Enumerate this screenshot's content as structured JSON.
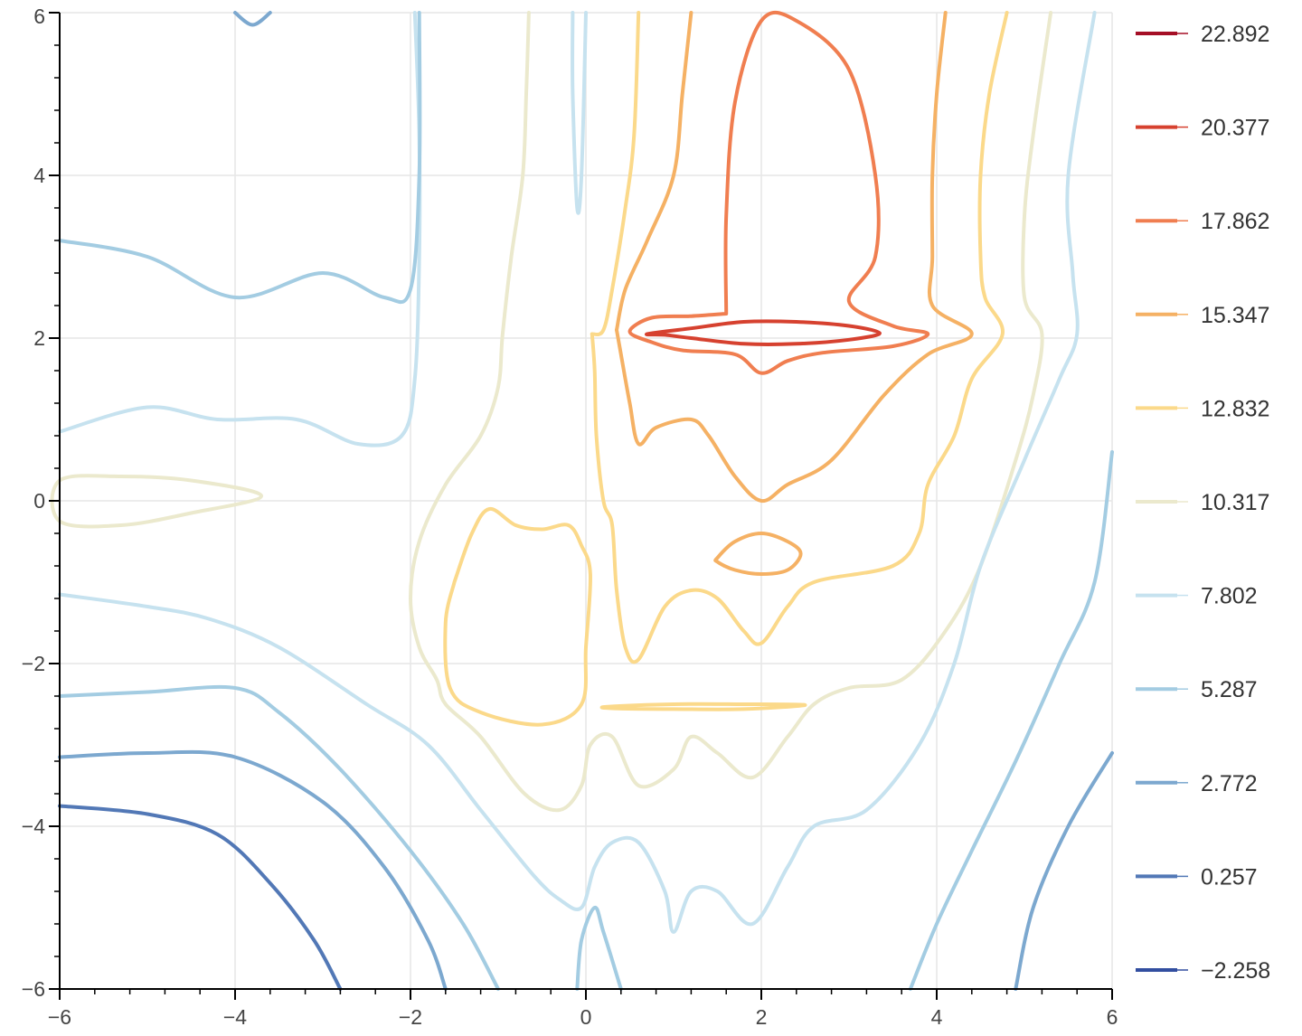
{
  "chart_data": {
    "type": "contour",
    "title": "",
    "xlabel": "",
    "ylabel": "",
    "xlim": [
      -6,
      6
    ],
    "ylim": [
      -6,
      6
    ],
    "x_ticks": [
      -6,
      -4,
      -2,
      0,
      2,
      4,
      6
    ],
    "y_ticks": [
      -6,
      -4,
      -2,
      0,
      2,
      4,
      6
    ],
    "x_tick_labels": [
      "−6",
      "−4",
      "−2",
      "0",
      "2",
      "4",
      "6"
    ],
    "y_tick_labels": [
      "−6",
      "−4",
      "−2",
      "0",
      "2",
      "4",
      "6"
    ],
    "grid": true,
    "legend_position": "right",
    "levels": [
      {
        "value": 22.892,
        "label": "22.892",
        "color": "#a50f26"
      },
      {
        "value": 20.377,
        "label": "20.377",
        "color": "#d6412f"
      },
      {
        "value": 17.862,
        "label": "17.862",
        "color": "#f07e50"
      },
      {
        "value": 15.347,
        "label": "15.347",
        "color": "#f5b164"
      },
      {
        "value": 12.832,
        "label": "12.832",
        "color": "#fbd98a"
      },
      {
        "value": 10.317,
        "label": "10.317",
        "color": "#ebe9cd"
      },
      {
        "value": 7.802,
        "label": "7.802",
        "color": "#c6e2ef"
      },
      {
        "value": 5.287,
        "label": "5.287",
        "color": "#a3cce2"
      },
      {
        "value": 2.772,
        "label": "2.772",
        "color": "#7ca8cf"
      },
      {
        "value": 0.257,
        "label": "0.257",
        "color": "#5278b6"
      },
      {
        "value": -2.258,
        "label": "−2.258",
        "color": "#324ea0"
      }
    ],
    "contours": [
      {
        "level": "20.377",
        "closed": true,
        "points": [
          [
            0.7,
            2.05
          ],
          [
            1.2,
            2.12
          ],
          [
            1.8,
            2.2
          ],
          [
            2.4,
            2.2
          ],
          [
            3.0,
            2.15
          ],
          [
            3.35,
            2.06
          ],
          [
            3.0,
            1.98
          ],
          [
            2.4,
            1.93
          ],
          [
            1.8,
            1.93
          ],
          [
            1.2,
            2.0
          ],
          [
            0.9,
            2.04
          ]
        ]
      },
      {
        "level": "17.862",
        "closed": false,
        "points": [
          [
            1.6,
            2.3
          ],
          [
            1.6,
            3.5
          ],
          [
            1.7,
            4.9
          ],
          [
            2.0,
            5.9
          ],
          [
            2.4,
            5.9
          ],
          [
            3.0,
            5.3
          ],
          [
            3.3,
            4.0
          ],
          [
            3.3,
            3.0
          ],
          [
            3.0,
            2.45
          ],
          [
            3.5,
            2.15
          ],
          [
            3.9,
            2.05
          ],
          [
            3.5,
            1.9
          ],
          [
            2.7,
            1.82
          ],
          [
            2.3,
            1.72
          ],
          [
            2.0,
            1.57
          ],
          [
            1.7,
            1.8
          ],
          [
            1.1,
            1.85
          ],
          [
            0.75,
            1.95
          ],
          [
            0.5,
            2.08
          ],
          [
            0.75,
            2.25
          ],
          [
            1.2,
            2.27
          ],
          [
            1.6,
            2.3
          ]
        ]
      },
      {
        "level": "15.347",
        "closed": false,
        "points": [
          [
            0.35,
            2.1
          ],
          [
            0.45,
            2.6
          ],
          [
            0.7,
            3.2
          ],
          [
            1.0,
            4.0
          ],
          [
            1.1,
            5.0
          ],
          [
            1.2,
            6.0
          ]
        ]
      },
      {
        "level": "15.347",
        "closed": false,
        "points": [
          [
            4.1,
            6.0
          ],
          [
            4.0,
            5.0
          ],
          [
            3.95,
            4.0
          ],
          [
            3.95,
            3.0
          ],
          [
            3.95,
            2.4
          ],
          [
            4.4,
            2.05
          ],
          [
            3.9,
            1.8
          ],
          [
            3.4,
            1.3
          ],
          [
            2.8,
            0.5
          ],
          [
            2.3,
            0.2
          ],
          [
            2.0,
            0.0
          ],
          [
            1.7,
            0.3
          ],
          [
            1.4,
            0.8
          ],
          [
            1.2,
            1.0
          ],
          [
            0.8,
            0.9
          ],
          [
            0.6,
            0.7
          ],
          [
            0.5,
            1.2
          ],
          [
            0.4,
            1.8
          ],
          [
            0.35,
            2.1
          ]
        ]
      },
      {
        "level": "15.347",
        "closed": true,
        "points": [
          [
            1.5,
            -0.7
          ],
          [
            1.7,
            -0.5
          ],
          [
            2.0,
            -0.4
          ],
          [
            2.3,
            -0.5
          ],
          [
            2.45,
            -0.65
          ],
          [
            2.3,
            -0.85
          ],
          [
            2.0,
            -0.9
          ],
          [
            1.7,
            -0.85
          ],
          [
            1.5,
            -0.75
          ]
        ]
      },
      {
        "level": "12.832",
        "closed": false,
        "points": [
          [
            0.07,
            2.05
          ],
          [
            0.2,
            2.1
          ],
          [
            0.3,
            2.6
          ],
          [
            0.45,
            3.6
          ],
          [
            0.55,
            4.5
          ],
          [
            0.6,
            6.0
          ]
        ]
      },
      {
        "level": "12.832",
        "closed": false,
        "points": [
          [
            4.8,
            6.0
          ],
          [
            4.6,
            5.0
          ],
          [
            4.5,
            4.0
          ],
          [
            4.5,
            3.0
          ],
          [
            4.55,
            2.5
          ],
          [
            4.75,
            2.05
          ],
          [
            4.4,
            1.5
          ],
          [
            4.2,
            0.8
          ],
          [
            3.9,
            0.2
          ],
          [
            3.8,
            -0.4
          ],
          [
            3.5,
            -0.8
          ],
          [
            2.6,
            -1.0
          ],
          [
            2.3,
            -1.3
          ],
          [
            2.0,
            -1.75
          ],
          [
            1.8,
            -1.6
          ],
          [
            1.5,
            -1.2
          ],
          [
            1.2,
            -1.1
          ],
          [
            0.9,
            -1.3
          ],
          [
            0.6,
            -1.95
          ],
          [
            0.45,
            -1.8
          ],
          [
            0.35,
            -1.1
          ],
          [
            0.3,
            -0.3
          ],
          [
            0.2,
            0.0
          ],
          [
            0.12,
            0.8
          ],
          [
            0.1,
            1.6
          ],
          [
            0.07,
            2.05
          ]
        ]
      },
      {
        "level": "12.832",
        "closed": false,
        "points": [
          [
            -1.5,
            -1.0
          ],
          [
            -1.3,
            -0.4
          ],
          [
            -1.1,
            -0.1
          ],
          [
            -0.8,
            -0.3
          ],
          [
            -0.5,
            -0.35
          ],
          [
            -0.2,
            -0.3
          ],
          [
            -0.05,
            -0.55
          ],
          [
            0.05,
            -0.9
          ],
          [
            0.0,
            -1.8
          ],
          [
            -0.05,
            -2.5
          ],
          [
            -0.5,
            -2.75
          ],
          [
            -1.2,
            -2.6
          ],
          [
            -1.55,
            -2.3
          ],
          [
            -1.6,
            -1.5
          ],
          [
            -1.5,
            -1.0
          ]
        ]
      },
      {
        "level": "12.832",
        "closed": true,
        "points": [
          [
            0.25,
            -2.53
          ],
          [
            1.0,
            -2.5
          ],
          [
            1.8,
            -2.5
          ],
          [
            2.5,
            -2.51
          ],
          [
            1.8,
            -2.56
          ],
          [
            1.0,
            -2.56
          ],
          [
            0.3,
            -2.55
          ]
        ]
      },
      {
        "level": "10.317",
        "closed": false,
        "points": [
          [
            -0.65,
            6.0
          ],
          [
            -0.68,
            5.0
          ],
          [
            -0.72,
            4.0
          ],
          [
            -0.85,
            3.0
          ],
          [
            -0.95,
            2.05
          ],
          [
            -1.0,
            1.4
          ],
          [
            -1.2,
            0.8
          ],
          [
            -1.6,
            0.2
          ],
          [
            -1.9,
            -0.5
          ],
          [
            -2.0,
            -1.2
          ],
          [
            -1.9,
            -1.8
          ],
          [
            -1.7,
            -2.2
          ],
          [
            -1.6,
            -2.5
          ],
          [
            -1.2,
            -2.9
          ],
          [
            -0.7,
            -3.6
          ],
          [
            -0.3,
            -3.8
          ],
          [
            -0.05,
            -3.5
          ],
          [
            0.05,
            -3.0
          ],
          [
            0.3,
            -2.9
          ],
          [
            0.6,
            -3.5
          ],
          [
            1.0,
            -3.3
          ],
          [
            1.2,
            -2.9
          ],
          [
            1.5,
            -3.1
          ],
          [
            1.9,
            -3.4
          ],
          [
            2.3,
            -2.9
          ],
          [
            2.6,
            -2.5
          ],
          [
            3.0,
            -2.3
          ],
          [
            3.6,
            -2.2
          ],
          [
            4.1,
            -1.6
          ],
          [
            4.5,
            -0.8
          ],
          [
            4.9,
            0.5
          ],
          [
            5.1,
            1.3
          ],
          [
            5.2,
            2.05
          ],
          [
            5.0,
            2.5
          ],
          [
            5.0,
            3.5
          ],
          [
            5.1,
            4.5
          ],
          [
            5.3,
            6.0
          ]
        ]
      },
      {
        "level": "10.317",
        "closed": true,
        "points": [
          [
            -6.0,
            0.25
          ],
          [
            -5.3,
            0.3
          ],
          [
            -4.5,
            0.25
          ],
          [
            -3.7,
            0.06
          ],
          [
            -4.5,
            -0.15
          ],
          [
            -5.3,
            -0.3
          ],
          [
            -6.0,
            -0.25
          ]
        ]
      },
      {
        "level": "7.802",
        "closed": false,
        "points": [
          [
            -0.15,
            6.0
          ],
          [
            -0.15,
            5.0
          ],
          [
            -0.1,
            3.6
          ],
          [
            -0.05,
            4.0
          ],
          [
            0.0,
            6.0
          ]
        ]
      },
      {
        "level": "7.802",
        "closed": false,
        "points": [
          [
            -1.95,
            6.0
          ],
          [
            -1.9,
            4.5
          ],
          [
            -1.9,
            3.0
          ],
          [
            -1.95,
            1.5
          ],
          [
            -2.1,
            0.8
          ],
          [
            -2.6,
            0.7
          ],
          [
            -3.3,
            1.0
          ],
          [
            -4.2,
            1.0
          ],
          [
            -5.0,
            1.15
          ],
          [
            -6.0,
            0.85
          ]
        ]
      },
      {
        "level": "7.802",
        "closed": false,
        "points": [
          [
            -6.0,
            -1.15
          ],
          [
            -5.0,
            -1.3
          ],
          [
            -4.3,
            -1.45
          ],
          [
            -3.5,
            -1.8
          ],
          [
            -2.5,
            -2.5
          ],
          [
            -1.8,
            -3.0
          ],
          [
            -1.2,
            -3.8
          ],
          [
            -0.6,
            -4.6
          ],
          [
            -0.3,
            -4.9
          ],
          [
            -0.05,
            -5.0
          ],
          [
            0.1,
            -4.5
          ],
          [
            0.3,
            -4.2
          ],
          [
            0.6,
            -4.2
          ],
          [
            0.9,
            -4.8
          ],
          [
            1.0,
            -5.3
          ],
          [
            1.2,
            -4.8
          ],
          [
            1.5,
            -4.8
          ],
          [
            1.9,
            -5.2
          ],
          [
            2.3,
            -4.5
          ],
          [
            2.6,
            -4.0
          ],
          [
            3.2,
            -3.8
          ],
          [
            3.8,
            -3.0
          ],
          [
            4.2,
            -2.0
          ],
          [
            4.5,
            -0.8
          ],
          [
            5.0,
            0.5
          ],
          [
            5.4,
            1.5
          ],
          [
            5.6,
            2.05
          ],
          [
            5.55,
            2.8
          ],
          [
            5.5,
            4.0
          ],
          [
            5.8,
            6.0
          ]
        ]
      },
      {
        "level": "5.287",
        "closed": false,
        "points": [
          [
            -1.9,
            6.0
          ],
          [
            -1.9,
            4.0
          ],
          [
            -2.0,
            2.6
          ],
          [
            -2.3,
            2.5
          ],
          [
            -3.0,
            2.8
          ],
          [
            -4.0,
            2.5
          ],
          [
            -5.0,
            3.0
          ],
          [
            -6.0,
            3.2
          ]
        ]
      },
      {
        "level": "5.287",
        "closed": false,
        "points": [
          [
            -6.0,
            -2.4
          ],
          [
            -5.0,
            -2.35
          ],
          [
            -4.0,
            -2.3
          ],
          [
            -3.5,
            -2.6
          ],
          [
            -2.8,
            -3.3
          ],
          [
            -2.0,
            -4.3
          ],
          [
            -1.4,
            -5.2
          ],
          [
            -1.0,
            -6.0
          ]
        ]
      },
      {
        "level": "5.287",
        "closed": false,
        "points": [
          [
            6.0,
            0.6
          ],
          [
            5.8,
            -1.0
          ],
          [
            5.4,
            -2.0
          ],
          [
            4.9,
            -3.2
          ],
          [
            4.4,
            -4.3
          ],
          [
            4.0,
            -5.2
          ],
          [
            3.7,
            -6.0
          ]
        ]
      },
      {
        "level": "5.287",
        "closed": false,
        "points": [
          [
            -0.1,
            -6.0
          ],
          [
            -0.05,
            -5.4
          ],
          [
            0.1,
            -5.0
          ],
          [
            0.2,
            -5.3
          ],
          [
            0.4,
            -6.0
          ]
        ]
      },
      {
        "level": "2.772",
        "closed": false,
        "points": [
          [
            -6.0,
            -3.15
          ],
          [
            -5.0,
            -3.1
          ],
          [
            -4.0,
            -3.15
          ],
          [
            -3.0,
            -3.7
          ],
          [
            -2.3,
            -4.5
          ],
          [
            -1.8,
            -5.4
          ],
          [
            -1.6,
            -6.0
          ]
        ]
      },
      {
        "level": "2.772",
        "closed": false,
        "points": [
          [
            6.0,
            -3.1
          ],
          [
            5.5,
            -4.0
          ],
          [
            5.1,
            -5.0
          ],
          [
            4.9,
            -6.0
          ]
        ]
      },
      {
        "level": "2.772",
        "closed": false,
        "points": [
          [
            -4.0,
            6.0
          ],
          [
            -3.8,
            5.85
          ],
          [
            -3.6,
            6.0
          ]
        ]
      },
      {
        "level": "0.257",
        "closed": false,
        "points": [
          [
            -6.0,
            -3.75
          ],
          [
            -5.0,
            -3.85
          ],
          [
            -4.2,
            -4.1
          ],
          [
            -3.6,
            -4.7
          ],
          [
            -3.1,
            -5.4
          ],
          [
            -2.8,
            -6.0
          ]
        ]
      }
    ]
  }
}
